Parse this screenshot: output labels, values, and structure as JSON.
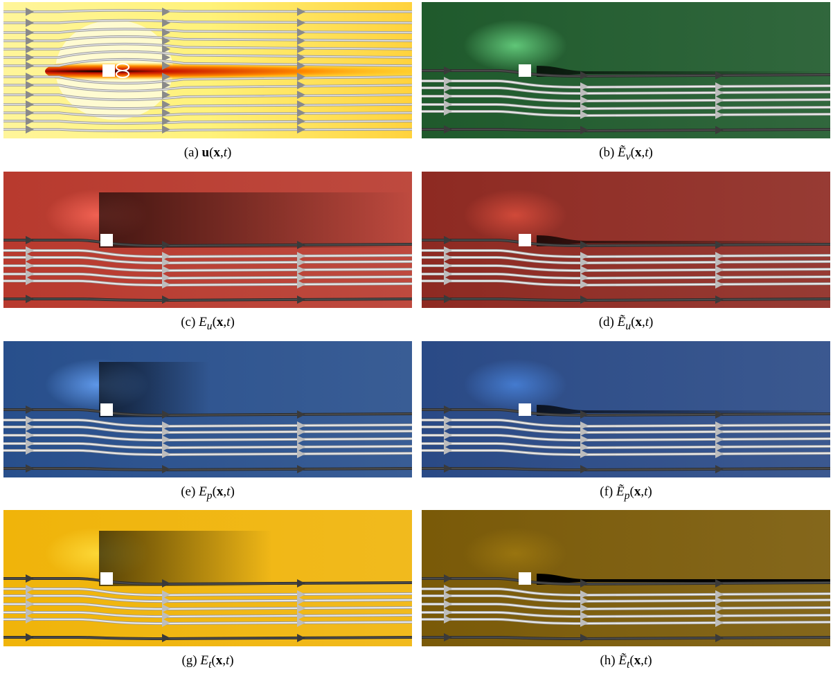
{
  "figure": {
    "panels": [
      {
        "id": "a",
        "caption": "(a) u(x,t)",
        "caption_parts": {
          "label": "(a)",
          "symbol": "u",
          "args": "(x,t)",
          "bold_symbol": true,
          "tilde": false,
          "subscript": ""
        },
        "theme": "velocity"
      },
      {
        "id": "b",
        "caption": "(b) Ẽν(x,t)",
        "caption_parts": {
          "label": "(b)",
          "symbol": "E",
          "args": "(x,t)",
          "bold_symbol": false,
          "tilde": true,
          "subscript": "ν"
        },
        "theme": "green"
      },
      {
        "id": "c",
        "caption": "(c) Eu(x,t)",
        "caption_parts": {
          "label": "(c)",
          "symbol": "E",
          "args": "(x,t)",
          "bold_symbol": false,
          "tilde": false,
          "subscript": "u"
        },
        "theme": "red"
      },
      {
        "id": "d",
        "caption": "(d) Ẽu(x,t)",
        "caption_parts": {
          "label": "(d)",
          "symbol": "E",
          "args": "(x,t)",
          "bold_symbol": false,
          "tilde": true,
          "subscript": "u"
        },
        "theme": "darkred"
      },
      {
        "id": "e",
        "caption": "(e) Ep(x,t)",
        "caption_parts": {
          "label": "(e)",
          "symbol": "E",
          "args": "(x,t)",
          "bold_symbol": false,
          "tilde": false,
          "subscript": "p"
        },
        "theme": "blue"
      },
      {
        "id": "f",
        "caption": "(f) Ẽp(x,t)",
        "caption_parts": {
          "label": "(f)",
          "symbol": "E",
          "args": "(x,t)",
          "bold_symbol": false,
          "tilde": true,
          "subscript": "p"
        },
        "theme": "blue2"
      },
      {
        "id": "g",
        "caption": "(g) Et(x,t)",
        "caption_parts": {
          "label": "(g)",
          "symbol": "E",
          "args": "(x,t)",
          "bold_symbol": false,
          "tilde": false,
          "subscript": "t"
        },
        "theme": "yellow"
      },
      {
        "id": "h",
        "caption": "(h) Ẽt(x,t)",
        "caption_parts": {
          "label": "(h)",
          "symbol": "E",
          "args": "(x,t)",
          "bold_symbol": false,
          "tilde": true,
          "subscript": "t"
        },
        "theme": "olive"
      }
    ],
    "colors": {
      "velocity_bg": "#fff27a",
      "velocity_wake": "#c81400",
      "green_bg": "#1f5a2c",
      "red_bg": "#b83a2e",
      "darkred_bg": "#8e2a22",
      "blue_bg": "#284f8c",
      "blue2_bg": "#2a4a86",
      "yellow_bg": "#f0b40a",
      "olive_bg": "#7a5a08",
      "streamline_light": "#e8e8e8",
      "streamline_dark": "#4a4a4a",
      "obstacle": "#ffffff"
    }
  }
}
